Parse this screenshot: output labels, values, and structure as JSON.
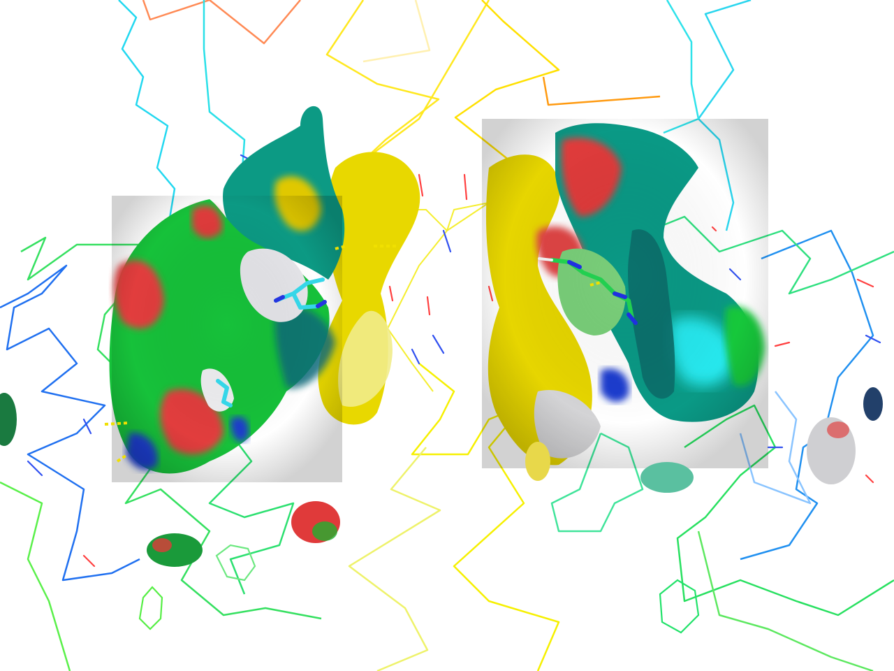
{
  "scene": {
    "kind": "molecular-render",
    "background": "#ffffff",
    "palette": {
      "backbone_orange": "#ff8a3d",
      "backbone_yellow": "#ffe81a",
      "backbone_cyan": "#22dde8",
      "backbone_blue": "#1f6cf0",
      "backbone_green": "#2de05a",
      "surface_green": "#17c43a",
      "surface_teal": "#0a9a86",
      "surface_red": "#e03a3a",
      "surface_yellow": "#e6d400",
      "surface_grey": "#d8d8d8",
      "surface_blue": "#1a3fd0",
      "ligand_cyan": "#35d6e8",
      "hbond_yellow": "#f0e000"
    }
  }
}
